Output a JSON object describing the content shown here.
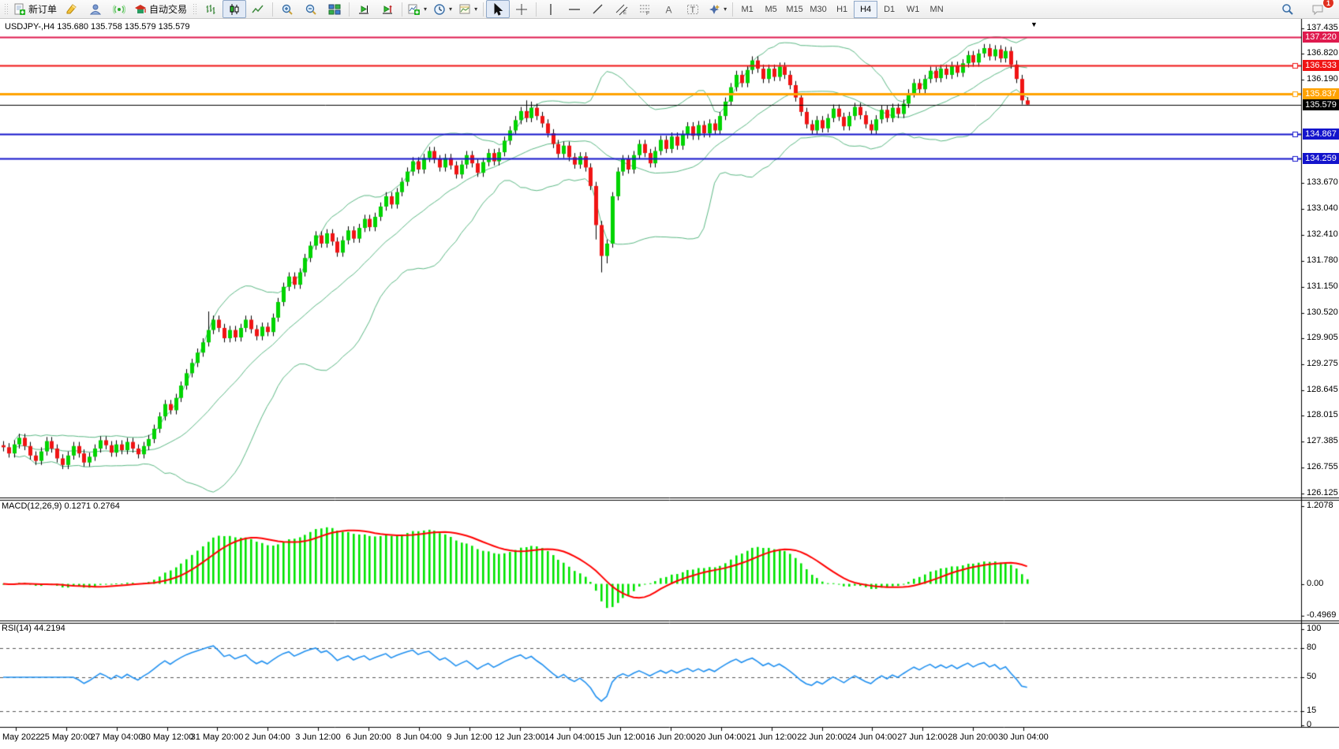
{
  "toolbar": {
    "new_order_label": "新订单",
    "autotrading_label": "自动交易",
    "timeframes": [
      "M1",
      "M5",
      "M15",
      "M30",
      "H1",
      "H4",
      "D1",
      "W1",
      "MN"
    ],
    "active_timeframe": "H4",
    "notification_count": "1"
  },
  "chart": {
    "title": "USDJPY-,H4  135.680 135.758 135.579 135.579",
    "symbol": "USDJPY-",
    "period": "H4",
    "ohlc": {
      "open": "135.680",
      "high": "135.758",
      "low": "135.579",
      "close": "135.579"
    },
    "price_axis": {
      "ticks": [
        "137.435",
        "136.820",
        "136.190",
        "133.670",
        "133.040",
        "132.410",
        "131.780",
        "131.150",
        "130.520",
        "129.905",
        "129.275",
        "128.645",
        "128.015",
        "127.385",
        "126.755",
        "126.125"
      ],
      "visible_range": [
        126.03,
        137.64
      ]
    },
    "levels": [
      {
        "price": 137.22,
        "label": "137.220",
        "color": "#df1a4e",
        "width": 2,
        "handle": false
      },
      {
        "price": 136.533,
        "label": "136.533",
        "color": "#f01414",
        "width": 2,
        "handle": true
      },
      {
        "price": 135.837,
        "label": "135.837",
        "color": "#ffa200",
        "width": 3,
        "handle": true
      },
      {
        "price": 135.579,
        "label": "135.579",
        "color": "#000000",
        "width": 1,
        "handle": false,
        "type": "current-price"
      },
      {
        "price": 134.867,
        "label": "134.867",
        "color": "#1414cc",
        "width": 2,
        "handle": true
      },
      {
        "price": 134.259,
        "label": "134.259",
        "color": "#1414cc",
        "width": 2,
        "handle": true
      }
    ],
    "time_axis": {
      "labels": [
        "May 2022",
        "25 May 20:00",
        "27 May 04:00",
        "30 May 12:00",
        "31 May 20:00",
        "2 Jun 04:00",
        "3 Jun 12:00",
        "6 Jun 20:00",
        "8 Jun 04:00",
        "9 Jun 12:00",
        "12 Jun 23:00",
        "14 Jun 04:00",
        "15 Jun 12:00",
        "16 Jun 20:00",
        "20 Jun 04:00",
        "21 Jun 12:00",
        "22 Jun 20:00",
        "24 Jun 04:00",
        "27 Jun 12:00",
        "28 Jun 20:00",
        "30 Jun 04:00"
      ]
    }
  },
  "chart_data": {
    "type": "candlestick",
    "symbol": "USDJPY-",
    "timeframe": "H4",
    "first_open": 127.3,
    "wick": 0.1,
    "closes": [
      127.25,
      127.1,
      127.32,
      127.48,
      127.28,
      127.05,
      126.92,
      127.15,
      127.4,
      127.22,
      126.98,
      126.82,
      127.05,
      127.28,
      127.1,
      126.88,
      127.02,
      127.22,
      127.42,
      127.3,
      127.12,
      127.32,
      127.18,
      127.38,
      127.22,
      127.08,
      127.28,
      127.45,
      127.7,
      128.0,
      128.3,
      128.15,
      128.45,
      128.75,
      129.05,
      129.3,
      129.55,
      129.8,
      130.1,
      130.35,
      130.15,
      129.9,
      130.1,
      129.92,
      130.15,
      130.35,
      130.12,
      129.95,
      130.18,
      130.05,
      130.4,
      130.78,
      131.15,
      131.4,
      131.2,
      131.5,
      131.85,
      132.15,
      132.4,
      132.2,
      132.45,
      132.25,
      131.98,
      132.28,
      132.52,
      132.32,
      132.58,
      132.8,
      132.6,
      132.85,
      133.1,
      133.35,
      133.15,
      133.45,
      133.7,
      133.95,
      134.2,
      134.0,
      134.28,
      134.45,
      134.25,
      134.05,
      134.28,
      134.1,
      133.88,
      134.12,
      134.35,
      134.15,
      133.92,
      134.18,
      134.4,
      134.2,
      134.42,
      134.7,
      134.95,
      135.2,
      135.42,
      135.25,
      135.5,
      135.3,
      135.12,
      134.88,
      134.62,
      134.38,
      134.58,
      134.3,
      134.12,
      134.32,
      134.05,
      133.6,
      132.65,
      131.9,
      132.2,
      133.35,
      133.95,
      134.25,
      134.0,
      134.35,
      134.62,
      134.4,
      134.15,
      134.45,
      134.72,
      134.5,
      134.8,
      134.58,
      134.85,
      135.05,
      134.82,
      135.08,
      134.88,
      135.12,
      134.95,
      135.3,
      135.65,
      136.0,
      136.3,
      136.1,
      136.42,
      136.65,
      136.45,
      136.2,
      136.45,
      136.25,
      136.5,
      136.3,
      136.05,
      135.75,
      135.4,
      135.1,
      134.95,
      135.2,
      135.0,
      135.25,
      135.48,
      135.28,
      135.05,
      135.3,
      135.52,
      135.32,
      135.1,
      134.95,
      135.22,
      135.45,
      135.25,
      135.5,
      135.35,
      135.6,
      135.85,
      136.1,
      135.95,
      136.2,
      136.4,
      136.22,
      136.45,
      136.3,
      136.52,
      136.35,
      136.58,
      136.78,
      136.6,
      136.82,
      136.95,
      136.75,
      136.92,
      136.7,
      136.88,
      136.55,
      136.2,
      135.68,
      135.579
    ],
    "special_wicks": {
      "38": [
        130.55,
        null
      ],
      "97": [
        135.68,
        null
      ],
      "98": [
        135.65,
        null
      ],
      "110": [
        null,
        132.3
      ],
      "111": [
        null,
        131.5
      ],
      "112": [
        null,
        131.72
      ]
    },
    "last_candle": [
      135.68,
      135.758,
      135.579,
      135.579
    ],
    "overlays": [
      {
        "name": "Bollinger Bands",
        "params": "(20, 2)",
        "color": "#5cb985"
      }
    ],
    "panes": [
      {
        "name": "MACD",
        "label": "MACD(12,26,9) 0.1271 0.2764",
        "main_value": "0.1271",
        "signal_value": "0.2764",
        "axis_labels": [
          "1.2078",
          "0.00",
          "-0.4969"
        ],
        "axis_values": [
          1.2078,
          0,
          -0.4969
        ],
        "histogram_color": "#00e400",
        "signal_color": "#ff0000"
      },
      {
        "name": "RSI",
        "label": "RSI(14) 44.2194",
        "value": "44.2194",
        "axis_labels": [
          "100",
          "80",
          "50",
          "15",
          "0"
        ],
        "axis_values": [
          100,
          80,
          50,
          15,
          0
        ],
        "dashed_levels": [
          80,
          50,
          15
        ],
        "line_color": "#2090f0"
      }
    ],
    "colors": {
      "bull": "#00d400",
      "bear": "#f01414",
      "wick": "#000000",
      "background": "#ffffff",
      "axis_line": "#000000"
    }
  }
}
